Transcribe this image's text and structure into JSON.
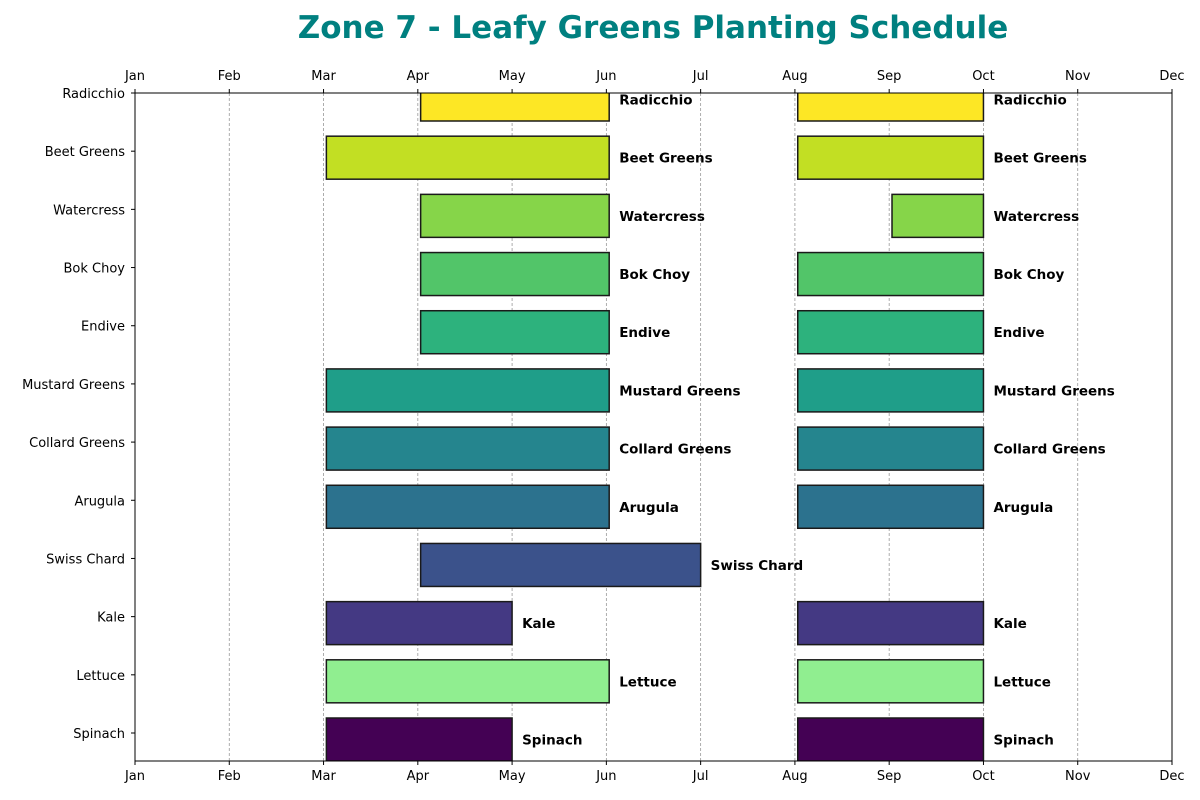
{
  "chart_data": {
    "type": "bar",
    "orientation": "horizontal-gantt",
    "title": "Zone 7 - Leafy Greens Planting Schedule",
    "xlabel": "",
    "ylabel": "",
    "x_tick_labels": [
      "Jan",
      "Feb",
      "Mar",
      "Apr",
      "May",
      "Jun",
      "Jul",
      "Aug",
      "Sep",
      "Oct",
      "Nov",
      "Dec"
    ],
    "xlim": [
      1,
      12
    ],
    "x_ticks_on_top_and_bottom": true,
    "grid": "vertical dashed",
    "title_color": "#008080",
    "rows": [
      {
        "name": "Spinach",
        "color": "#440154",
        "periods": [
          [
            3.03,
            5.0
          ],
          [
            8.03,
            10.0
          ]
        ]
      },
      {
        "name": "Lettuce",
        "color": "#90ee90",
        "periods": [
          [
            3.03,
            6.03
          ],
          [
            8.03,
            10.0
          ]
        ]
      },
      {
        "name": "Kale",
        "color": "#443983",
        "periods": [
          [
            3.03,
            5.0
          ],
          [
            8.03,
            10.0
          ]
        ]
      },
      {
        "name": "Swiss Chard",
        "color": "#3b528b",
        "periods": [
          [
            4.03,
            7.0
          ]
        ]
      },
      {
        "name": "Arugula",
        "color": "#2c728e",
        "periods": [
          [
            3.03,
            6.03
          ],
          [
            8.03,
            10.0
          ]
        ]
      },
      {
        "name": "Collard Greens",
        "color": "#25858e",
        "periods": [
          [
            3.03,
            6.03
          ],
          [
            8.03,
            10.0
          ]
        ]
      },
      {
        "name": "Mustard Greens",
        "color": "#1f9e89",
        "periods": [
          [
            3.03,
            6.03
          ],
          [
            8.03,
            10.0
          ]
        ]
      },
      {
        "name": "Endive",
        "color": "#2db27d",
        "periods": [
          [
            4.03,
            6.03
          ],
          [
            8.03,
            10.0
          ]
        ]
      },
      {
        "name": "Bok Choy",
        "color": "#52c569",
        "periods": [
          [
            4.03,
            6.03
          ],
          [
            8.03,
            10.0
          ]
        ]
      },
      {
        "name": "Watercress",
        "color": "#86d549",
        "periods": [
          [
            4.03,
            6.03
          ],
          [
            9.03,
            10.0
          ]
        ]
      },
      {
        "name": "Beet Greens",
        "color": "#c2df23",
        "periods": [
          [
            3.03,
            6.03
          ],
          [
            8.03,
            10.0
          ]
        ]
      },
      {
        "name": "Radicchio",
        "color": "#fde725",
        "periods": [
          [
            4.03,
            6.03
          ],
          [
            8.03,
            10.0
          ]
        ]
      }
    ]
  }
}
